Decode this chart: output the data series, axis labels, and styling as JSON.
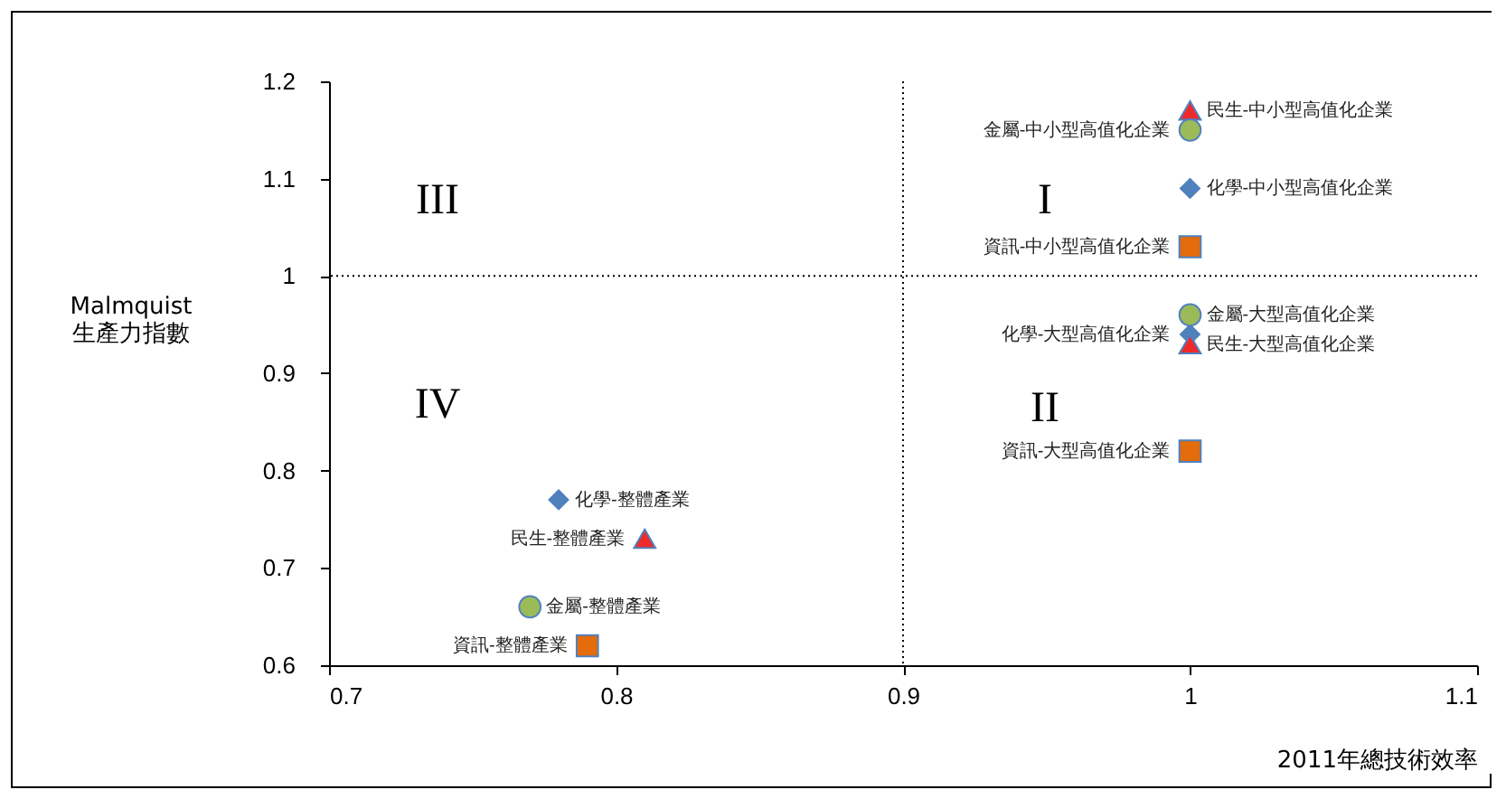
{
  "chart_data": {
    "type": "scatter",
    "xlabel": "2011年總技術效率",
    "ylabel": "Malmquist\n生產力指數",
    "xlim": [
      0.7,
      1.1
    ],
    "xticks": [
      0.7,
      0.8,
      0.9,
      1.0,
      1.1
    ],
    "ylim": [
      0.6,
      1.2
    ],
    "yticks": [
      0.6,
      0.7,
      0.8,
      0.9,
      1.0,
      1.1,
      1.2
    ],
    "grid": false,
    "series": [
      {
        "color": "#4f81bd",
        "marker": "diamond",
        "x": [
          0.78,
          1.0,
          1.0
        ],
        "values": [
          0.77,
          1.09,
          0.94
        ]
      },
      {
        "color": "#ee2b2b",
        "marker": "triangle",
        "x": [
          0.81,
          1.0,
          1.0
        ],
        "values": [
          0.73,
          1.17,
          0.93
        ]
      },
      {
        "color": "#9bbb59",
        "marker": "circle",
        "x": [
          0.77,
          1.0,
          1.0
        ],
        "values": [
          0.66,
          1.15,
          0.96
        ]
      },
      {
        "color": "#e46c0a",
        "marker": "square",
        "x": [
          0.79,
          1.0,
          1.0
        ],
        "values": [
          0.62,
          1.03,
          0.82
        ]
      }
    ],
    "ref_lines": [
      {
        "axis": "x",
        "value": 0.9,
        "line_style": "dotted"
      },
      {
        "axis": "y",
        "value": 1.0,
        "line_style": "dotted"
      }
    ],
    "annotations": [
      {
        "text": "化學-整體產業",
        "x": 0.78,
        "y": 0.77
      },
      {
        "text": "化學-中小型高值化企業",
        "x": 1.0,
        "y": 1.09
      },
      {
        "text": "化學-大型高值化企業",
        "x": 1.0,
        "y": 0.94
      },
      {
        "text": "民生-整體產業",
        "x": 0.81,
        "y": 0.73
      },
      {
        "text": "民生-中小型高值化企業",
        "x": 1.0,
        "y": 1.17
      },
      {
        "text": "民生-大型高值化企業",
        "x": 1.0,
        "y": 0.93
      },
      {
        "text": "金屬-整體產業",
        "x": 0.77,
        "y": 0.66
      },
      {
        "text": "金屬-中小型高值化企業",
        "x": 1.0,
        "y": 1.15
      },
      {
        "text": "金屬-大型高值化企業",
        "x": 1.0,
        "y": 0.96
      },
      {
        "text": "資訊-整體產業",
        "x": 0.79,
        "y": 0.62
      },
      {
        "text": "資訊-中小型高值化企業",
        "x": 1.0,
        "y": 1.03
      },
      {
        "text": "資訊-大型高值化企業",
        "x": 1.0,
        "y": 0.82
      },
      "I",
      "II",
      "III",
      "IV"
    ]
  }
}
